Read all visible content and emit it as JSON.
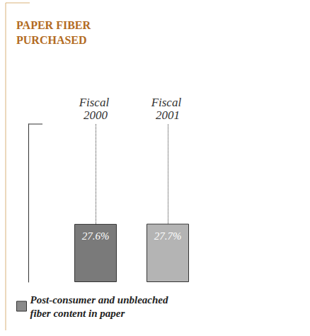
{
  "chart_data": {
    "type": "bar",
    "title": "PAPER FIBER PURCHASED",
    "categories": [
      "Fiscal 2000",
      "Fiscal 2001"
    ],
    "series": [
      {
        "name": "Post-consumer and unbleached fiber content in paper",
        "color": "#8a8a8a",
        "colors": [
          "#7a7a7a",
          "#b4b4b4"
        ],
        "values": [
          27.6,
          27.7
        ],
        "value_labels": [
          "27.6%",
          "27.7%"
        ]
      }
    ],
    "ylim": [
      0,
      75
    ],
    "tick_labels": "x",
    "data_labels": true,
    "legend": "bottom-left",
    "grid": false
  }
}
